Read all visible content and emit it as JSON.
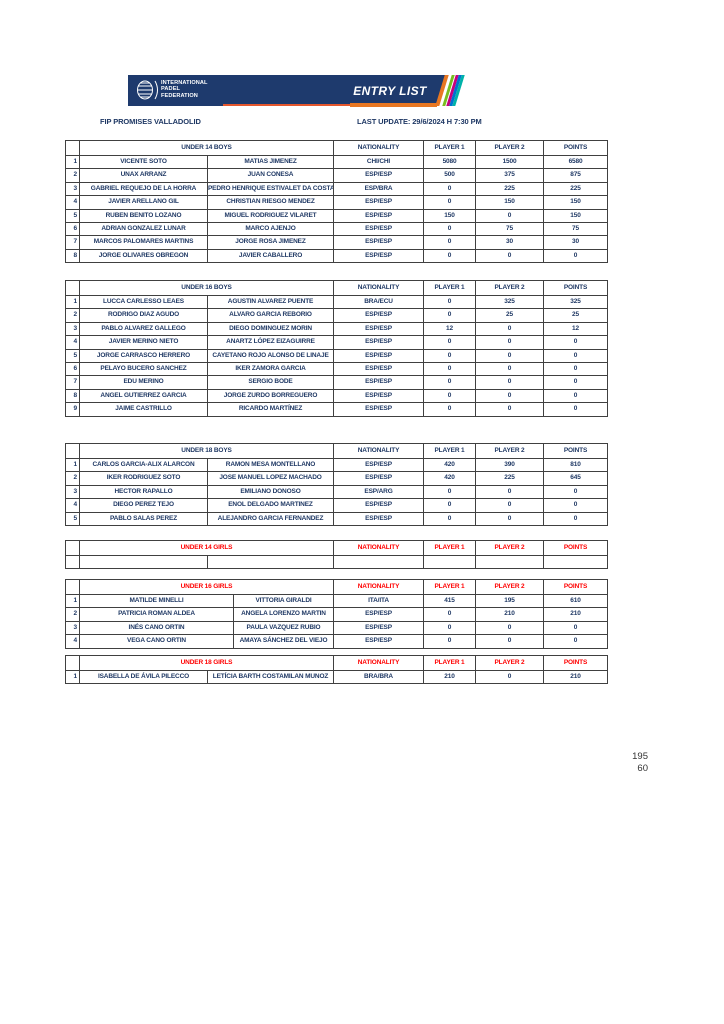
{
  "header": {
    "logo_lines": [
      "INTERNATIONAL",
      "PADEL",
      "FEDERATION"
    ],
    "banner_title": "ENTRY LIST",
    "event_name": "FIP PROMISES VALLADOLID",
    "last_update": "LAST UPDATE: 29/6/2024 H 7:30 PM"
  },
  "columns": {
    "nationality": "NATIONALITY",
    "player1": "PLAYER 1",
    "player2": "PLAYER 2",
    "points": "POINTS"
  },
  "colors": {
    "navy_text": "#1F3864",
    "banner_navy": "#1E3A6D",
    "girls_red": "#FF0000",
    "accent_orange": "#E87722",
    "border_gray": "#404040"
  },
  "tables": [
    {
      "title": "UNDER 14 BOYS",
      "category": "boys",
      "wide_name1": false,
      "rows": [
        [
          "1",
          "VICENTE SOTO",
          "MATIAS JIMENEZ",
          "CHI/CHI",
          "5080",
          "1500",
          "6580"
        ],
        [
          "2",
          "UNAX ARRANZ",
          "JUAN CONESA",
          "ESP/ESP",
          "500",
          "375",
          "875"
        ],
        [
          "3",
          "GABRIEL REQUEJO DE LA HORRA",
          "PEDRO HENRIQUE ESTIVALET DA COSTA",
          "ESP/BRA",
          "0",
          "225",
          "225"
        ],
        [
          "4",
          "JAVIER ARELLANO GIL",
          "CHRISTIAN RIESGO MENDEZ",
          "ESP/ESP",
          "0",
          "150",
          "150"
        ],
        [
          "5",
          "RUBEN BENITO LOZANO",
          "MIGUEL RODRIGUEZ VILARET",
          "ESP/ESP",
          "150",
          "0",
          "150"
        ],
        [
          "6",
          "ADRIAN GONZALEZ LUNAR",
          "MARCO AJENJO",
          "ESP/ESP",
          "0",
          "75",
          "75"
        ],
        [
          "7",
          "MARCOS PALOMARES MARTINS",
          "JORGE ROSA JIMENEZ",
          "ESP/ESP",
          "0",
          "30",
          "30"
        ],
        [
          "8",
          "JORGE OLIVARES OBREGON",
          "JAVIER CABALLERO",
          "ESP/ESP",
          "0",
          "0",
          "0"
        ]
      ]
    },
    {
      "title": "UNDER 16 BOYS",
      "category": "boys",
      "wide_name1": false,
      "rows": [
        [
          "1",
          "LUCCA CARLESSO LEAES",
          "AGUSTIN ALVAREZ PUENTE",
          "BRA/ECU",
          "0",
          "325",
          "325"
        ],
        [
          "2",
          "RODRIGO DIAZ AGUDO",
          "ALVARO GARCIA REBORIO",
          "ESP/ESP",
          "0",
          "25",
          "25"
        ],
        [
          "3",
          "PABLO ALVAREZ GALLEGO",
          "DIEGO DOMINGUEZ MORIN",
          "ESP/ESP",
          "12",
          "0",
          "12"
        ],
        [
          "4",
          "JAVIER MERINO NIETO",
          "ANARTZ LÓPEZ EIZAGUIRRE",
          "ESP/ESP",
          "0",
          "0",
          "0"
        ],
        [
          "5",
          "JORGE CARRASCO HERRERO",
          "CAYETANO ROJO ALONSO DE LINAJE",
          "ESP/ESP",
          "0",
          "0",
          "0"
        ],
        [
          "6",
          "PELAYO BUCERO SANCHEZ",
          "IKER ZAMORA GARCIA",
          "ESP/ESP",
          "0",
          "0",
          "0"
        ],
        [
          "7",
          "EDU MERINO",
          "SERGIO BODE",
          "ESP/ESP",
          "0",
          "0",
          "0"
        ],
        [
          "8",
          "ANGEL GUTIERREZ GARCIA",
          "JORGE ZURDO BORREGUERO",
          "ESP/ESP",
          "0",
          "0",
          "0"
        ],
        [
          "9",
          "JAIME CASTRILLO",
          "RICARDO MARTÍNEZ",
          "ESP/ESP",
          "0",
          "0",
          "0"
        ]
      ]
    },
    {
      "title": "UNDER 18 BOYS",
      "category": "boys",
      "wide_name1": false,
      "rows": [
        [
          "1",
          "CARLOS GARCIA-ALIX ALARCON",
          "RAMON MESA MONTELLANO",
          "ESP/ESP",
          "420",
          "390",
          "810"
        ],
        [
          "2",
          "IKER RODRIGUEZ SOTO",
          "JOSE MANUEL LOPEZ MACHADO",
          "ESP/ESP",
          "420",
          "225",
          "645"
        ],
        [
          "3",
          "HECTOR RAPALLO",
          "EMILIANO DONOSO",
          "ESP/ARG",
          "0",
          "0",
          "0"
        ],
        [
          "4",
          "DIEGO PEREZ TEJO",
          "ENOL DELGADO MARTINEZ",
          "ESP/ESP",
          "0",
          "0",
          "0"
        ],
        [
          "5",
          "PABLO SALAS PEREZ",
          "ALEJANDRO GARCIA FERNANDEZ",
          "ESP/ESP",
          "0",
          "0",
          "0"
        ]
      ]
    },
    {
      "title": "UNDER 14 GIRLS",
      "category": "girls",
      "wide_name1": false,
      "rows": [
        [
          "",
          "",
          "",
          "",
          "",
          "",
          ""
        ]
      ]
    },
    {
      "title": "UNDER 16 GIRLS",
      "category": "girls",
      "wide_name1": true,
      "rows": [
        [
          "1",
          "MATILDE MINELLI",
          "VITTORIA GIRALDI",
          "ITA/ITA",
          "415",
          "195",
          "610"
        ],
        [
          "2",
          "PATRICIA ROMAN ALDEA",
          "ANGELA LORENZO MARTIN",
          "ESP/ESP",
          "0",
          "210",
          "210"
        ],
        [
          "3",
          "INÉS CANO ORTIN",
          "PAULA VAZQUEZ RUBIO",
          "ESP/ESP",
          "0",
          "0",
          "0"
        ],
        [
          "4",
          "VEGA CANO ORTIN",
          "AMAYA SÁNCHEZ DEL VIEJO",
          "ESP/ESP",
          "0",
          "0",
          "0"
        ]
      ]
    },
    {
      "title": "UNDER 18 GIRLS",
      "category": "girls",
      "wide_name1": false,
      "rows": [
        [
          "1",
          "ISABELLA DE ÁVILA PILECCO",
          "LETÍCIA BARTH COSTAMILAN MUNOZ",
          "BRA/BRA",
          "210",
          "0",
          "210"
        ]
      ]
    }
  ],
  "footer": {
    "numbers": [
      "195",
      "60"
    ]
  }
}
